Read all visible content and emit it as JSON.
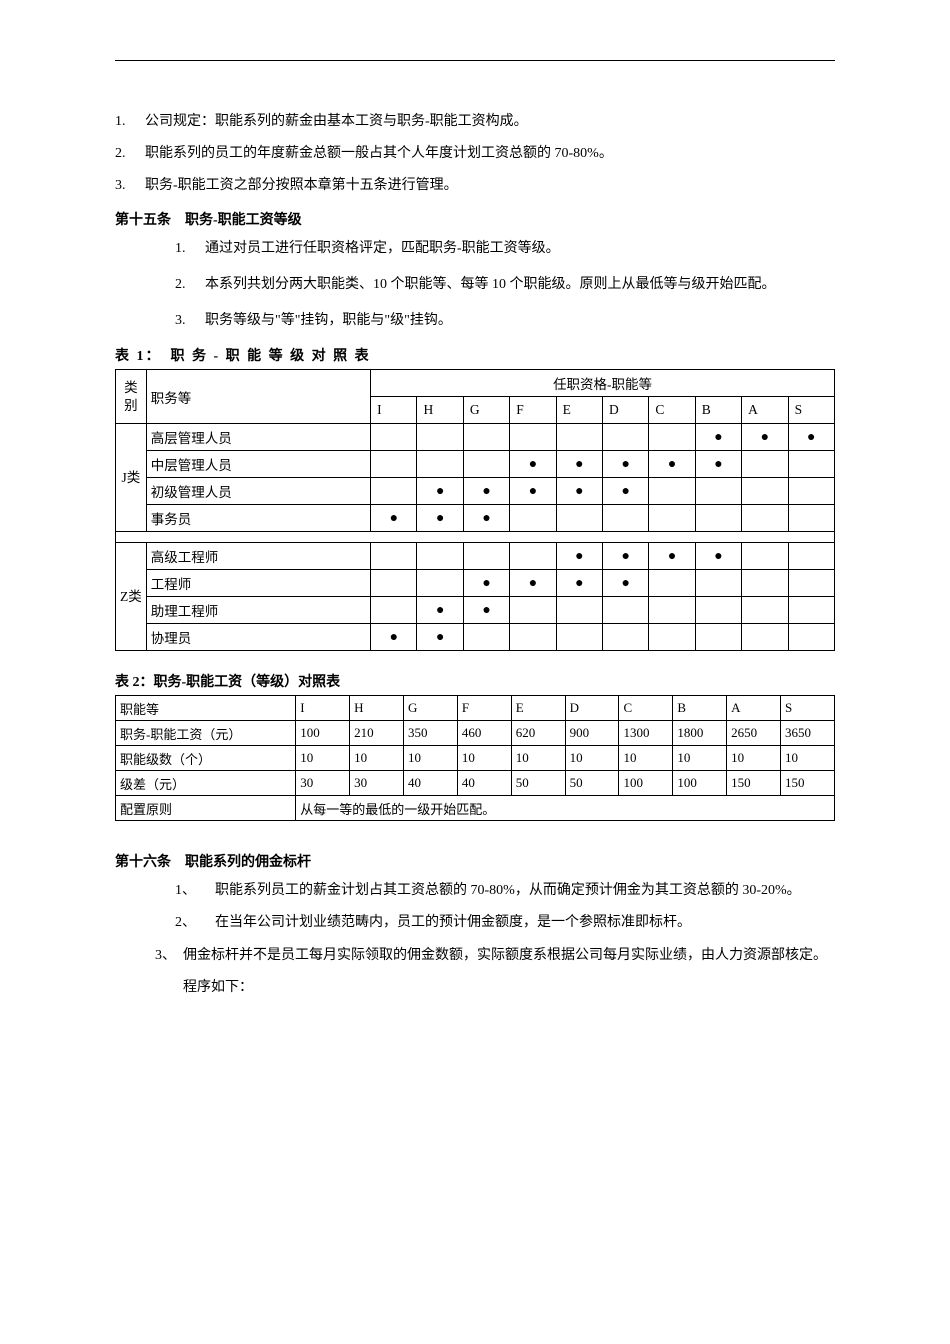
{
  "top_list": [
    {
      "num": "1.",
      "text": "公司规定：职能系列的薪金由基本工资与职务-职能工资构成。"
    },
    {
      "num": "2.",
      "text": "职能系列的员工的年度薪金总额一般占其个人年度计划工资总额的 70-80%。"
    },
    {
      "num": "3.",
      "text": "职务-职能工资之部分按照本章第十五条进行管理。"
    }
  ],
  "article15_title": "第十五条　职务-职能工资等级",
  "article15_list": [
    {
      "num": "1.",
      "text": "通过对员工进行任职资格评定，匹配职务-职能工资等级。"
    },
    {
      "num": "2.",
      "text": "本系列共划分两大职能类、10 个职能等、每等 10 个职能级。原则上从最低等与级开始匹配。"
    },
    {
      "num": "3.",
      "text": "职务等级与\"等\"挂钩，职能与\"级\"挂钩。"
    }
  ],
  "table1_title": "表 1：　职 务 - 职 能 等 级 对 照 表",
  "table1": {
    "cat_header": "类别",
    "pos_header": "职务等",
    "qual_header": "任职资格-职能等",
    "grades": [
      "I",
      "H",
      "G",
      "F",
      "E",
      "D",
      "C",
      "B",
      "A",
      "S"
    ],
    "groupJ": {
      "label": "J类",
      "rows": [
        {
          "pos": "高层管理人员",
          "dots": [
            0,
            0,
            0,
            0,
            0,
            0,
            0,
            1,
            1,
            1
          ]
        },
        {
          "pos": "中层管理人员",
          "dots": [
            0,
            0,
            0,
            1,
            1,
            1,
            1,
            1,
            0,
            0
          ]
        },
        {
          "pos": "初级管理人员",
          "dots": [
            0,
            1,
            1,
            1,
            1,
            1,
            0,
            0,
            0,
            0
          ]
        },
        {
          "pos": "事务员",
          "dots": [
            1,
            1,
            1,
            0,
            0,
            0,
            0,
            0,
            0,
            0
          ]
        }
      ]
    },
    "groupZ": {
      "label": "Z类",
      "rows": [
        {
          "pos": "高级工程师",
          "dots": [
            0,
            0,
            0,
            0,
            1,
            1,
            1,
            1,
            0,
            0
          ]
        },
        {
          "pos": "工程师",
          "dots": [
            0,
            0,
            1,
            1,
            1,
            1,
            0,
            0,
            0,
            0
          ]
        },
        {
          "pos": "助理工程师",
          "dots": [
            0,
            1,
            1,
            0,
            0,
            0,
            0,
            0,
            0,
            0
          ]
        },
        {
          "pos": "协理员",
          "dots": [
            1,
            1,
            0,
            0,
            0,
            0,
            0,
            0,
            0,
            0
          ]
        }
      ]
    }
  },
  "table2_title": "表 2：职务-职能工资（等级）对照表",
  "table2": {
    "rows": [
      {
        "h": "职能等",
        "c": [
          "I",
          "H",
          "G",
          "F",
          "E",
          "D",
          "C",
          "B",
          "A",
          "S"
        ]
      },
      {
        "h": "职务-职能工资（元）",
        "c": [
          "100",
          "210",
          "350",
          "460",
          "620",
          "900",
          "1300",
          "1800",
          "2650",
          "3650"
        ]
      },
      {
        "h": "职能级数（个）",
        "c": [
          "10",
          "10",
          "10",
          "10",
          "10",
          "10",
          "10",
          "10",
          "10",
          "10"
        ]
      },
      {
        "h": "级差（元）",
        "c": [
          "30",
          "30",
          "40",
          "40",
          "50",
          "50",
          "100",
          "100",
          "150",
          "150"
        ]
      },
      {
        "h": "配置原则",
        "span": "从每一等的最低的一级开始匹配。"
      }
    ]
  },
  "article16_title": "第十六条　职能系列的佣金标杆",
  "article16_list": [
    {
      "num": "1、",
      "text": "职能系列员工的薪金计划占其工资总额的 70-80%，从而确定预计佣金为其工资总额的 30-20%。"
    },
    {
      "num": "2、",
      "text": "在当年公司计划业绩范畴内，员工的预计佣金额度，是一个参照标准即标杆。"
    }
  ],
  "article16_item3": {
    "num": "3、",
    "text": "佣金标杆并不是员工每月实际领取的佣金数额，实际额度系根据公司每月实际业绩，由人力资源部核定。程序如下："
  },
  "dot": "●"
}
